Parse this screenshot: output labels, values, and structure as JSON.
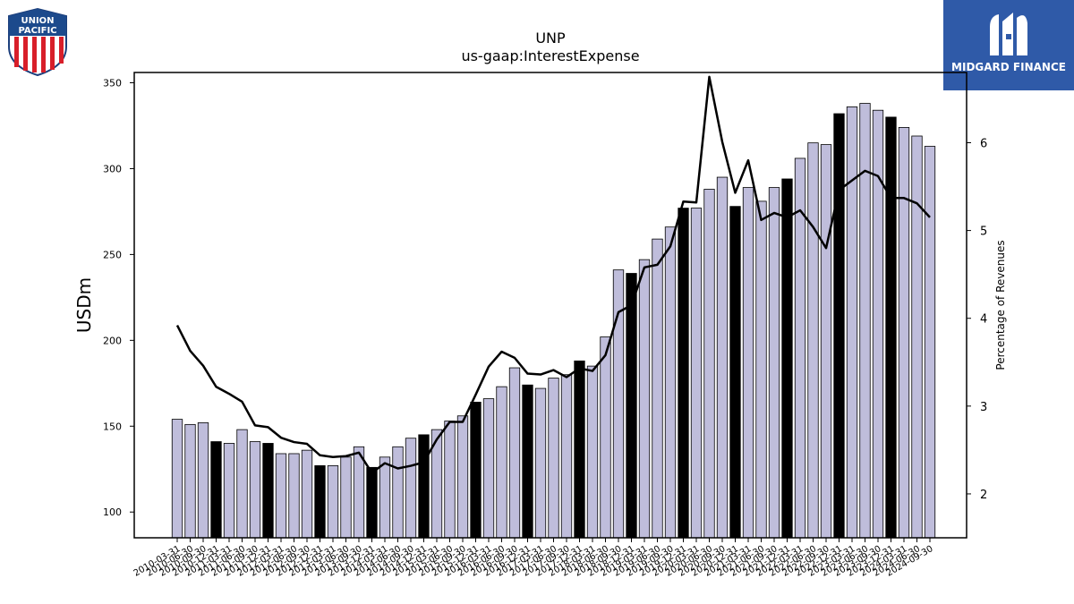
{
  "header": {
    "ticker": "UNP",
    "metric": "us-gaap:InterestExpense"
  },
  "logos": {
    "company_line1": "UNION",
    "company_line2": "PACIFIC",
    "brand_name": "MIDGARD FINANCE"
  },
  "colors": {
    "bar_regular": "#bfbddb",
    "bar_highlight": "#000000",
    "line": "#000000",
    "brand_bg": "#2f5aa8"
  },
  "chart_data": {
    "type": "bar",
    "title": "UNP",
    "subtitle": "us-gaap:InterestExpense",
    "ylabel": "USDm",
    "y2label": "Percentage of Revenues",
    "ylim": [
      85,
      356
    ],
    "y2lim": [
      1.5,
      6.8
    ],
    "yticks": [
      100,
      150,
      200,
      250,
      300,
      350
    ],
    "y2ticks": [
      2,
      3,
      4,
      5,
      6
    ],
    "grid": false,
    "categories": [
      "2010-03-31",
      "2010-06-30",
      "2010-09-30",
      "2010-12-31",
      "2011-03-31",
      "2011-06-30",
      "2011-09-30",
      "2011-12-31",
      "2012-03-31",
      "2012-06-30",
      "2012-09-30",
      "2012-12-31",
      "2013-03-31",
      "2013-06-30",
      "2013-09-30",
      "2013-12-31",
      "2014-03-31",
      "2014-06-30",
      "2014-09-30",
      "2014-12-31",
      "2015-03-31",
      "2015-06-30",
      "2015-09-30",
      "2015-12-31",
      "2016-03-31",
      "2016-06-30",
      "2016-09-30",
      "2016-12-31",
      "2017-03-31",
      "2017-06-30",
      "2017-09-30",
      "2017-12-31",
      "2018-03-31",
      "2018-06-30",
      "2018-09-30",
      "2018-12-31",
      "2019-03-31",
      "2019-06-30",
      "2019-09-30",
      "2019-12-31",
      "2020-03-31",
      "2020-06-30",
      "2020-09-30",
      "2020-12-31",
      "2021-03-31",
      "2021-06-30",
      "2021-09-30",
      "2021-12-31",
      "2022-03-31",
      "2022-06-30",
      "2022-09-30",
      "2022-12-31",
      "2023-03-31",
      "2023-06-30",
      "2023-09-30",
      "2023-12-31",
      "2024-03-31",
      "2024-06-30",
      "2024-09-30"
    ],
    "series": [
      {
        "name": "",
        "kind": "bar",
        "axis": "left",
        "values": [
          154,
          151,
          152,
          141,
          140,
          148,
          141,
          140,
          134,
          134,
          136,
          127,
          127,
          132,
          138,
          126,
          132,
          138,
          143,
          145,
          148,
          153,
          156,
          164,
          166,
          173,
          184,
          174,
          172,
          178,
          180,
          188,
          185,
          202,
          241,
          239,
          247,
          259,
          266,
          277,
          277,
          288,
          295,
          278,
          289,
          281,
          289,
          294,
          306,
          315,
          314,
          332,
          336,
          338,
          334,
          330,
          324,
          319,
          313
        ],
        "highlight_indices": [
          3,
          7,
          11,
          15,
          19,
          23,
          27,
          31,
          35,
          39,
          43,
          47,
          51,
          55
        ]
      },
      {
        "name": "",
        "kind": "line",
        "axis": "right",
        "values": [
          3.92,
          3.63,
          3.46,
          3.22,
          3.14,
          3.05,
          2.78,
          2.76,
          2.64,
          2.59,
          2.57,
          2.44,
          2.42,
          2.43,
          2.47,
          2.24,
          2.35,
          2.29,
          2.32,
          2.36,
          2.62,
          2.82,
          2.82,
          3.13,
          3.45,
          3.62,
          3.55,
          3.37,
          3.36,
          3.41,
          3.33,
          3.43,
          3.4,
          3.58,
          4.07,
          4.15,
          4.58,
          4.61,
          4.82,
          5.33,
          5.32,
          6.75,
          6.01,
          5.43,
          5.8,
          5.12,
          5.2,
          5.15,
          5.23,
          5.04,
          4.8,
          5.46,
          5.57,
          5.68,
          5.62,
          5.37,
          5.37,
          5.31,
          5.15
        ]
      }
    ]
  }
}
